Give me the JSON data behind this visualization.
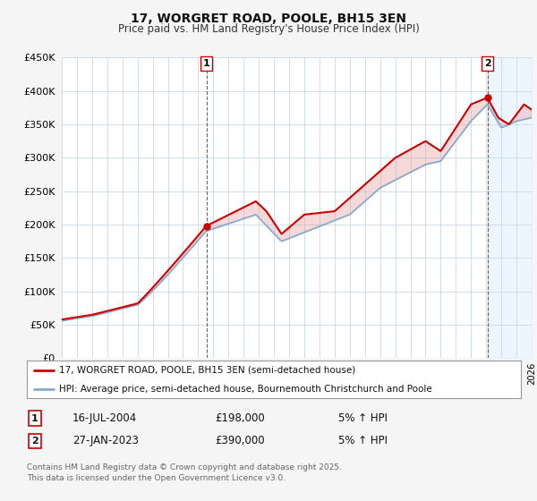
{
  "title": "17, WORGRET ROAD, POOLE, BH15 3EN",
  "subtitle": "Price paid vs. HM Land Registry's House Price Index (HPI)",
  "ylim": [
    0,
    450000
  ],
  "xlim_start": 1995.0,
  "xlim_end": 2026.0,
  "purchase1": {
    "date_label": "16-JUL-2004",
    "price": 198000,
    "hpi_note": "5% ↑ HPI",
    "marker_num": "1",
    "x": 2004.54
  },
  "purchase2": {
    "date_label": "27-JAN-2023",
    "price": 390000,
    "hpi_note": "5% ↑ HPI",
    "marker_num": "2",
    "x": 2023.08
  },
  "legend_line1": "17, WORGRET ROAD, POOLE, BH15 3EN (semi-detached house)",
  "legend_line2": "HPI: Average price, semi-detached house, Bournemouth Christchurch and Poole",
  "footer": "Contains HM Land Registry data © Crown copyright and database right 2025.\nThis data is licensed under the Open Government Licence v3.0.",
  "line_color_red": "#cc0000",
  "line_color_blue": "#88aacc",
  "fill_color_red": "#e8a0a0",
  "fill_color_blue": "#c8d8ee",
  "background_color": "#f5f5f5",
  "plot_bg_color": "#ffffff",
  "grid_color": "#ccddee",
  "hatch_color": "#ddeeff"
}
